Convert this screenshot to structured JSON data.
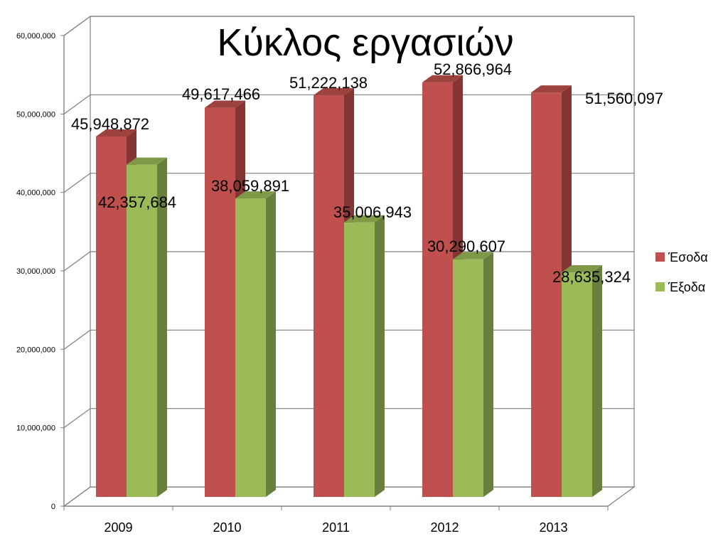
{
  "chart_data": {
    "type": "bar",
    "title": "Κύκλος εργασιών",
    "xlabel": "",
    "ylabel": "",
    "categories": [
      "2009",
      "2010",
      "2011",
      "2012",
      "2013"
    ],
    "series": [
      {
        "name": "Έσοδα",
        "values": [
          45948872,
          49617466,
          51222138,
          52866964,
          51560097
        ],
        "color": "#c0504d"
      },
      {
        "name": "Έξοδα",
        "values": [
          42357684,
          38059891,
          35006943,
          30290607,
          28635324
        ],
        "color": "#9bbb59"
      }
    ],
    "ylim": [
      0,
      60000000
    ],
    "yticks": [
      "0",
      "10,000,000",
      "20,000,000",
      "30,000,000",
      "40,000,000",
      "50,000,000",
      "60,000,000"
    ],
    "data_labels": [
      [
        "45,948,872",
        "49,617,466",
        "51,222,138",
        "52,866,964",
        "51,560,097"
      ],
      [
        "42,357,684",
        "38,059,891",
        "35,006,943",
        "30,290,607",
        "28,635,324"
      ]
    ],
    "grid": true,
    "legend_position": "right",
    "style": "3d-clustered"
  }
}
